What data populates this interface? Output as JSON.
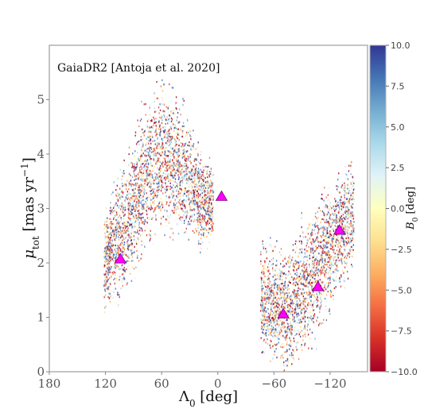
{
  "chart_data": {
    "type": "scatter",
    "annotation": "GaiaDR2 [Antoja et al. 2020]",
    "xlabel": "Λ",
    "xlabel_sub": "0",
    "xlabel_unit": " [deg]",
    "ylabel": "μ",
    "ylabel_sub": "tot",
    "ylabel_unit": " [mas yr",
    "ylabel_sup": "−1",
    "ylabel_close": "]",
    "x_axis_reversed": true,
    "xlim": [
      180,
      -160
    ],
    "ylim": [
      0,
      6
    ],
    "x_ticks": [
      180,
      120,
      60,
      0,
      -60,
      -120
    ],
    "x_tick_labels": [
      "180",
      "120",
      "60",
      "0",
      "−60",
      "−120"
    ],
    "y_ticks": [
      0,
      1,
      2,
      3,
      4,
      5
    ],
    "y_tick_labels": [
      "0",
      "1",
      "2",
      "3",
      "4",
      "5"
    ],
    "colorbar": {
      "label": "B",
      "label_sub": "0",
      "label_unit": " [deg]",
      "range": [
        -10,
        10
      ],
      "colormap": "RdYlBu",
      "ticks": [
        10,
        7.5,
        5,
        2.5,
        0,
        -2.5,
        -5,
        -7.5,
        -10
      ],
      "tick_labels": [
        "10.0",
        "7.5",
        "5.0",
        "2.5",
        "0.0",
        "−2.5",
        "−5.0",
        "−7.5",
        "−10.0"
      ]
    },
    "series": [
      {
        "marker": "triangle",
        "color": "#ff00ff",
        "points": [
          {
            "x": 104,
            "y": 2.07
          },
          {
            "x": -4,
            "y": 3.22
          },
          {
            "x": -70,
            "y": 1.06
          },
          {
            "x": -107,
            "y": 1.56
          },
          {
            "x": -130,
            "y": 2.6
          }
        ]
      }
    ],
    "scatter_envelope": [
      {
        "x": 122,
        "lo": 1.4,
        "hi": 2.5
      },
      {
        "x": 115,
        "lo": 1.6,
        "hi": 3.0
      },
      {
        "x": 105,
        "lo": 1.7,
        "hi": 3.3
      },
      {
        "x": 95,
        "lo": 2.0,
        "hi": 3.7
      },
      {
        "x": 85,
        "lo": 2.4,
        "hi": 4.2
      },
      {
        "x": 75,
        "lo": 2.7,
        "hi": 4.6
      },
      {
        "x": 65,
        "lo": 2.9,
        "hi": 4.8
      },
      {
        "x": 55,
        "lo": 3.0,
        "hi": 4.9
      },
      {
        "x": 45,
        "lo": 3.0,
        "hi": 4.8
      },
      {
        "x": 35,
        "lo": 2.8,
        "hi": 4.4
      },
      {
        "x": 25,
        "lo": 2.7,
        "hi": 4.0
      },
      {
        "x": 15,
        "lo": 2.6,
        "hi": 3.7
      },
      {
        "x": 5,
        "lo": 2.5,
        "hi": 3.6
      },
      {
        "x": -45,
        "lo": 0.7,
        "hi": 2.1
      },
      {
        "x": -55,
        "lo": 0.6,
        "hi": 2.0
      },
      {
        "x": -65,
        "lo": 0.4,
        "hi": 1.9
      },
      {
        "x": -75,
        "lo": 0.3,
        "hi": 2.1
      },
      {
        "x": -85,
        "lo": 0.6,
        "hi": 2.3
      },
      {
        "x": -95,
        "lo": 0.8,
        "hi": 2.5
      },
      {
        "x": -105,
        "lo": 1.0,
        "hi": 2.8
      },
      {
        "x": -115,
        "lo": 1.3,
        "hi": 3.0
      },
      {
        "x": -125,
        "lo": 1.7,
        "hi": 3.3
      },
      {
        "x": -135,
        "lo": 2.0,
        "hi": 3.5
      },
      {
        "x": -145,
        "lo": 2.3,
        "hi": 3.6
      }
    ]
  }
}
